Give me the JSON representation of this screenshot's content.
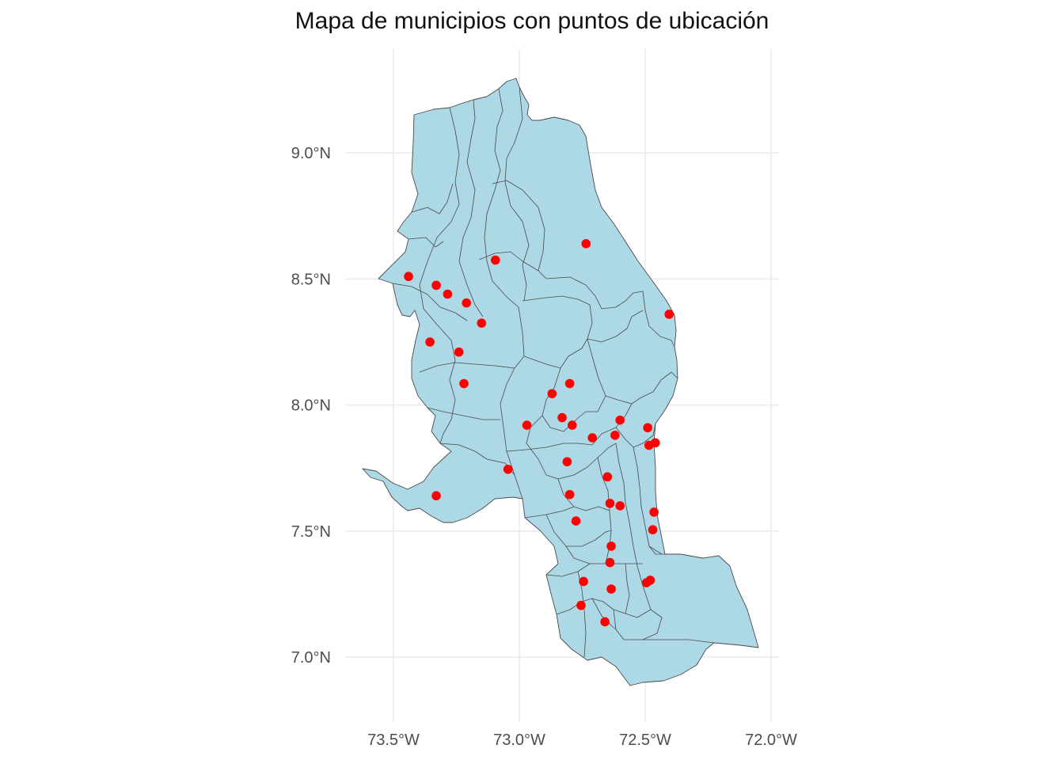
{
  "title": "Mapa de municipios con puntos de ubicación",
  "colors": {
    "fill": "#add8e6",
    "border": "#4a4a4a",
    "point": "#ff0000",
    "grid": "#ebebeb"
  },
  "axes": {
    "x_ticks": [
      {
        "value": -73.5,
        "label": "73.5°W"
      },
      {
        "value": -73.0,
        "label": "73.0°W"
      },
      {
        "value": -72.5,
        "label": "72.5°W"
      },
      {
        "value": -72.0,
        "label": "72.0°W"
      }
    ],
    "y_ticks": [
      {
        "value": 9.0,
        "label": "9.0°N"
      },
      {
        "value": 8.5,
        "label": "8.5°N"
      },
      {
        "value": 8.0,
        "label": "8.0°N"
      },
      {
        "value": 7.5,
        "label": "7.5°N"
      },
      {
        "value": 7.0,
        "label": "7.0°N"
      }
    ]
  },
  "points": [
    {
      "lon": -72.735,
      "lat": 8.64
    },
    {
      "lon": -73.095,
      "lat": 8.575
    },
    {
      "lon": -73.44,
      "lat": 8.51
    },
    {
      "lon": -73.33,
      "lat": 8.475
    },
    {
      "lon": -73.285,
      "lat": 8.44
    },
    {
      "lon": -73.21,
      "lat": 8.405
    },
    {
      "lon": -73.15,
      "lat": 8.325
    },
    {
      "lon": -72.405,
      "lat": 8.36
    },
    {
      "lon": -73.355,
      "lat": 8.25
    },
    {
      "lon": -73.24,
      "lat": 8.21
    },
    {
      "lon": -73.22,
      "lat": 8.085
    },
    {
      "lon": -72.8,
      "lat": 8.085
    },
    {
      "lon": -72.87,
      "lat": 8.045
    },
    {
      "lon": -72.83,
      "lat": 7.95
    },
    {
      "lon": -72.6,
      "lat": 7.94
    },
    {
      "lon": -72.97,
      "lat": 7.92
    },
    {
      "lon": -72.79,
      "lat": 7.92
    },
    {
      "lon": -72.49,
      "lat": 7.91
    },
    {
      "lon": -72.62,
      "lat": 7.88
    },
    {
      "lon": -72.71,
      "lat": 7.87
    },
    {
      "lon": -72.46,
      "lat": 7.85
    },
    {
      "lon": -72.485,
      "lat": 7.84
    },
    {
      "lon": -72.81,
      "lat": 7.775
    },
    {
      "lon": -73.045,
      "lat": 7.745
    },
    {
      "lon": -72.65,
      "lat": 7.715
    },
    {
      "lon": -72.8,
      "lat": 7.645
    },
    {
      "lon": -73.33,
      "lat": 7.64
    },
    {
      "lon": -72.64,
      "lat": 7.61
    },
    {
      "lon": -72.6,
      "lat": 7.6
    },
    {
      "lon": -72.465,
      "lat": 7.575
    },
    {
      "lon": -72.775,
      "lat": 7.54
    },
    {
      "lon": -72.47,
      "lat": 7.505
    },
    {
      "lon": -72.635,
      "lat": 7.44
    },
    {
      "lon": -72.64,
      "lat": 7.375
    },
    {
      "lon": -72.745,
      "lat": 7.3
    },
    {
      "lon": -72.48,
      "lat": 7.305
    },
    {
      "lon": -72.495,
      "lat": 7.295
    },
    {
      "lon": -72.635,
      "lat": 7.27
    },
    {
      "lon": -72.755,
      "lat": 7.205
    },
    {
      "lon": -72.66,
      "lat": 7.14
    }
  ]
}
